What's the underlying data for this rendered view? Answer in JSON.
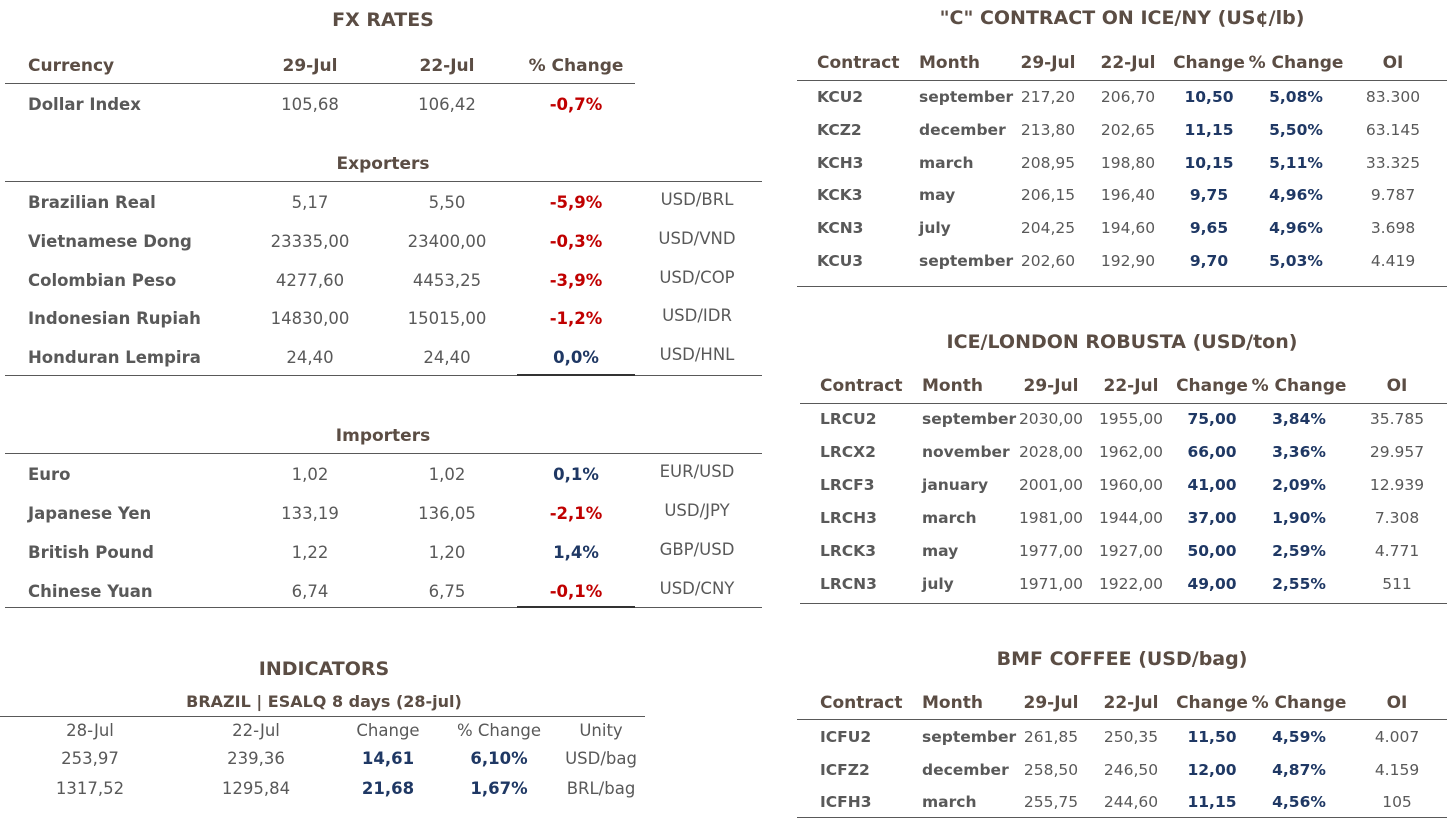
{
  "fx_rates": {
    "title": "FX RATES",
    "header": [
      "Currency",
      "29-Jul",
      "22-Jul",
      "% Change"
    ],
    "dollar_index": [
      "Dollar Index",
      "105,68",
      "106,42",
      "-0,7%"
    ],
    "exporters": {
      "title": "Exporters",
      "rows": [
        [
          "Brazilian Real",
          "5,17",
          "5,50",
          "-5,9%",
          "USD/BRL"
        ],
        [
          "Vietnamese Dong",
          "23335,00",
          "23400,00",
          "-0,3%",
          "USD/VND"
        ],
        [
          "Colombian Peso",
          "4277,60",
          "4453,25",
          "-3,9%",
          "USD/COP"
        ],
        [
          "Indonesian Rupiah",
          "14830,00",
          "15015,00",
          "-1,2%",
          "USD/IDR"
        ],
        [
          "Honduran Lempira",
          "24,40",
          "24,40",
          "0,0%",
          "USD/HNL"
        ]
      ]
    },
    "importers": {
      "title": "Importers",
      "rows": [
        [
          "Euro",
          "1,02",
          "1,02",
          "0,1%",
          "EUR/USD"
        ],
        [
          "Japanese Yen",
          "133,19",
          "136,05",
          "-2,1%",
          "USD/JPY"
        ],
        [
          "British Pound",
          "1,22",
          "1,20",
          "1,4%",
          "GBP/USD"
        ],
        [
          "Chinese Yuan",
          "6,74",
          "6,75",
          "-0,1%",
          "USD/CNY"
        ]
      ]
    }
  },
  "indicators": {
    "title": "INDICATORS",
    "subtitle": "BRAZIL | ESALQ 8 days (28-jul)",
    "header": [
      "28-Jul",
      "22-Jul",
      "Change",
      "% Change",
      "Unity"
    ],
    "rows": [
      [
        "253,97",
        "239,36",
        "14,61",
        "6,10%",
        "USD/bag"
      ],
      [
        "1317,52",
        "1295,84",
        "21,68",
        "1,67%",
        "BRL/bag"
      ]
    ]
  },
  "ice_ny": {
    "title": "\"C\" CONTRACT ON ICE/NY (US¢/lb)",
    "header": [
      "Contract",
      "Month",
      "29-Jul",
      "22-Jul",
      "Change",
      "% Change",
      "OI"
    ],
    "rows": [
      [
        "KCU2",
        "september",
        "217,20",
        "206,70",
        "10,50",
        "5,08%",
        "83.300"
      ],
      [
        "KCZ2",
        "december",
        "213,80",
        "202,65",
        "11,15",
        "5,50%",
        "63.145"
      ],
      [
        "KCH3",
        "march",
        "208,95",
        "198,80",
        "10,15",
        "5,11%",
        "33.325"
      ],
      [
        "KCK3",
        "may",
        "206,15",
        "196,40",
        "9,75",
        "4,96%",
        "9.787"
      ],
      [
        "KCN3",
        "july",
        "204,25",
        "194,60",
        "9,65",
        "4,96%",
        "3.698"
      ],
      [
        "KCU3",
        "september",
        "202,60",
        "192,90",
        "9,70",
        "5,03%",
        "4.419"
      ]
    ]
  },
  "ice_london": {
    "title": "ICE/LONDON ROBUSTA (USD/ton)",
    "header": [
      "Contract",
      "Month",
      "29-Jul",
      "22-Jul",
      "Change",
      "% Change",
      "OI"
    ],
    "rows": [
      [
        "LRCU2",
        "september",
        "2030,00",
        "1955,00",
        "75,00",
        "3,84%",
        "35.785"
      ],
      [
        "LRCX2",
        "november",
        "2028,00",
        "1962,00",
        "66,00",
        "3,36%",
        "29.957"
      ],
      [
        "LRCF3",
        "january",
        "2001,00",
        "1960,00",
        "41,00",
        "2,09%",
        "12.939"
      ],
      [
        "LRCH3",
        "march",
        "1981,00",
        "1944,00",
        "37,00",
        "1,90%",
        "7.308"
      ],
      [
        "LRCK3",
        "may",
        "1977,00",
        "1927,00",
        "50,00",
        "2,59%",
        "4.771"
      ],
      [
        "LRCN3",
        "july",
        "1971,00",
        "1922,00",
        "49,00",
        "2,55%",
        "511"
      ]
    ]
  },
  "bmf": {
    "title": "BMF COFFEE (USD/bag)",
    "header": [
      "Contract",
      "Month",
      "29-Jul",
      "22-Jul",
      "Change",
      "% Change",
      "OI"
    ],
    "rows": [
      [
        "ICFU2",
        "september",
        "261,85",
        "250,35",
        "11,50",
        "4,59%",
        "4.007"
      ],
      [
        "ICFZ2",
        "december",
        "258,50",
        "246,50",
        "12,00",
        "4,87%",
        "4.159"
      ],
      [
        "ICFH3",
        "march",
        "255,75",
        "244,60",
        "11,15",
        "4,56%",
        "105"
      ]
    ]
  }
}
